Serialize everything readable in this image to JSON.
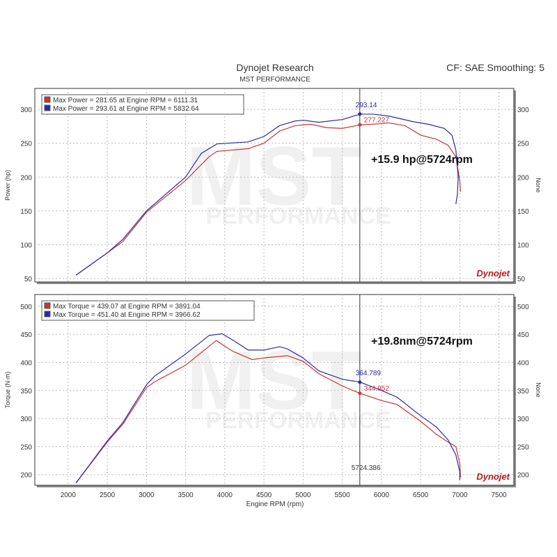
{
  "header": {
    "title": "Dynojet Research",
    "subtitle": "MST PERFORMANCE",
    "settings": "CF: SAE Smoothing: 5"
  },
  "watermark": {
    "main": "MST",
    "sub": "PERFORMANCE"
  },
  "logo": "Dynojet",
  "colors": {
    "run1": "#cc3333",
    "run2": "#2a2aa0",
    "grid": "#bbbbbb"
  },
  "chart_data": [
    {
      "type": "line",
      "ylabel": "Power (hp)",
      "ylabel_right": "None",
      "ylim": [
        45,
        331
      ],
      "xlim": [
        1575,
        7690
      ],
      "yticks": [
        50,
        100,
        150,
        200,
        250,
        300
      ],
      "grid": true,
      "legend_position": "top-left",
      "legend": [
        "Max Power = 281.65 at Engine RPM = 6111.31",
        "Max Power = 293.61 at Engine RPM = 5832.64"
      ],
      "annotation": "+15.9 hp@5724rpm",
      "cursor_rpm": 5724,
      "cursor_labels": [
        {
          "value": 293.14,
          "text": "293.14",
          "series": 1
        },
        {
          "value": 277.227,
          "text": "277.227",
          "series": 0
        }
      ],
      "series": [
        {
          "x": [
            2100,
            2500,
            2700,
            3000,
            3500,
            3800,
            3900,
            4300,
            4500,
            4700,
            4900,
            5100,
            5300,
            5500,
            5724,
            6000,
            6100,
            6300,
            6500,
            6700,
            6850,
            6950,
            7000,
            7010
          ],
          "y": [
            55,
            88,
            105,
            148,
            195,
            230,
            238,
            242,
            250,
            268,
            276,
            278,
            273,
            272,
            277,
            279,
            280,
            276,
            262,
            256,
            247,
            230,
            195,
            178
          ]
        },
        {
          "x": [
            2100,
            2500,
            2700,
            3000,
            3500,
            3700,
            3900,
            4300,
            4500,
            4700,
            4900,
            5000,
            5200,
            5500,
            5724,
            5900,
            6100,
            6400,
            6600,
            6800,
            6900,
            6950,
            6980,
            6970,
            6950
          ],
          "y": [
            55,
            88,
            108,
            150,
            200,
            235,
            249,
            252,
            260,
            276,
            283,
            284,
            281,
            285,
            293,
            293,
            290,
            282,
            278,
            272,
            262,
            240,
            200,
            175,
            160
          ]
        }
      ]
    },
    {
      "type": "line",
      "xlabel": "Engine RPM (rpm)",
      "ylabel": "Torque (N-m)",
      "ylabel_right": "None",
      "ylim": [
        181,
        521
      ],
      "xlim": [
        1575,
        7690
      ],
      "yticks": [
        200,
        250,
        300,
        350,
        400,
        450,
        500
      ],
      "xticks": [
        2000,
        2500,
        3000,
        3500,
        4000,
        4500,
        5000,
        5500,
        6000,
        6500,
        7000,
        7500
      ],
      "grid": true,
      "legend_position": "top-left",
      "legend": [
        "Max Torque = 439.07 at Engine RPM = 3891.04",
        "Max Torque = 451.40 at Engine RPM = 3966.62"
      ],
      "annotation": "+19.8nm@5724rpm",
      "cursor_rpm": 5724,
      "cursor_x_label": "5724.386",
      "cursor_labels": [
        {
          "value": 364.789,
          "text": "364.789",
          "series": 1
        },
        {
          "value": 344.952,
          "text": "344.952",
          "series": 0
        }
      ],
      "series": [
        {
          "x": [
            2100,
            2500,
            2700,
            3000,
            3100,
            3500,
            3891,
            4100,
            4350,
            4500,
            4800,
            5000,
            5200,
            5500,
            5724,
            6000,
            6200,
            6500,
            6700,
            6850,
            6950,
            7000,
            7010
          ],
          "y": [
            185,
            258,
            290,
            355,
            365,
            395,
            439,
            420,
            405,
            408,
            412,
            402,
            380,
            358,
            345,
            332,
            325,
            295,
            272,
            258,
            250,
            220,
            195
          ]
        },
        {
          "x": [
            2100,
            2500,
            2700,
            3000,
            3100,
            3500,
            3800,
            3966,
            4100,
            4300,
            4500,
            4700,
            4800,
            5000,
            5200,
            5500,
            5724,
            6000,
            6200,
            6500,
            6700,
            6850,
            6950,
            7000,
            7000
          ],
          "y": [
            185,
            260,
            293,
            360,
            375,
            415,
            448,
            451,
            440,
            422,
            422,
            428,
            424,
            408,
            385,
            370,
            365,
            350,
            338,
            305,
            285,
            262,
            235,
            205,
            190
          ]
        }
      ]
    }
  ]
}
